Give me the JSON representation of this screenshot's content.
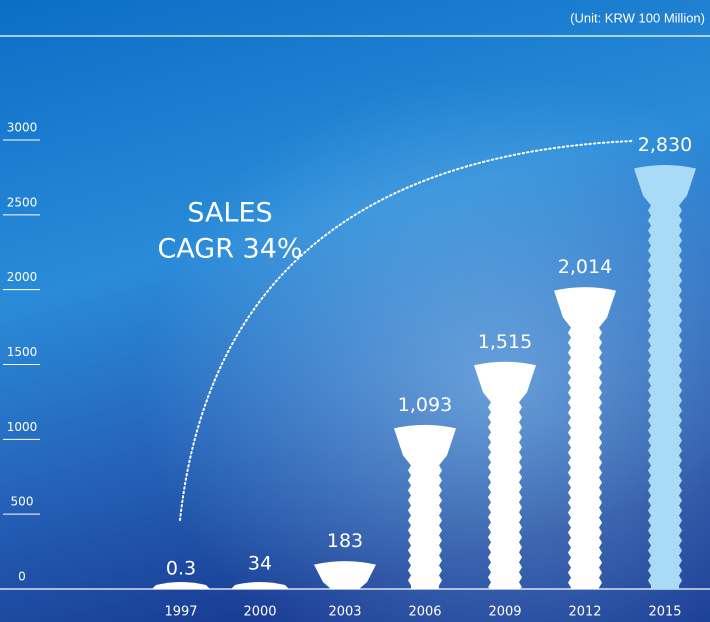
{
  "chart_data": {
    "type": "bar",
    "unit_label": "(Unit: KRW 100 Million)",
    "annotation": [
      "SALES",
      "CAGR 34%"
    ],
    "categories": [
      "1997",
      "2000",
      "2003",
      "2006",
      "2009",
      "2012",
      "2015"
    ],
    "values": [
      0.3,
      34,
      183,
      1093,
      1515,
      2014,
      2830
    ],
    "value_labels": [
      "0.3",
      "34",
      "183",
      "1,093",
      "1,515",
      "2,014",
      "2,830"
    ],
    "colors": [
      "#ffffff",
      "#ffffff",
      "#ffffff",
      "#ffffff",
      "#ffffff",
      "#ffffff",
      "#a9dbf7"
    ],
    "ylim": [
      0,
      3000
    ],
    "yticks": [
      0,
      500,
      1000,
      1500,
      2000,
      2500,
      3000
    ]
  }
}
